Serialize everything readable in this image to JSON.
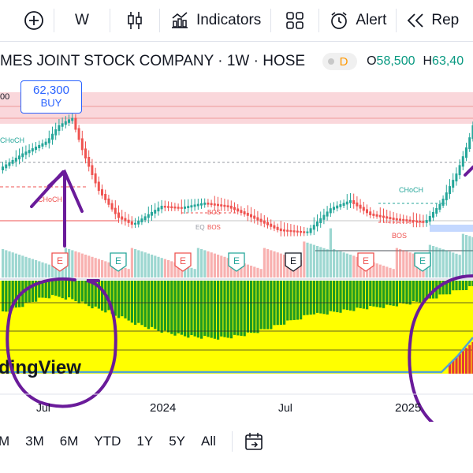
{
  "toolbar": {
    "interval": "W",
    "indicators_label": "Indicators",
    "alert_label": "Alert",
    "replay_label": "Rep"
  },
  "symbol": {
    "title": "MES JOINT STOCK COMPANY · 1W · HOSE",
    "d_badge": "D",
    "open_label": "O",
    "open_value": "58,500",
    "high_label": "H",
    "high_value": "63,40"
  },
  "order": {
    "price": "62,300",
    "action": "BUY",
    "left_price_fragment": "00"
  },
  "chart_labels": {
    "choch_1": "CHoCH",
    "choch_2": "CHoCH",
    "choch_3": "CHoCH",
    "eq": "EQ",
    "bos_1": "BOS",
    "bos_2": "BOS",
    "bos_3": "BOS",
    "earnings_marker": "E",
    "watermark": "dingView"
  },
  "time_axis": [
    "Jul",
    "2024",
    "Jul",
    "2025"
  ],
  "ranges": [
    "M",
    "3M",
    "6M",
    "YTD",
    "1Y",
    "5Y",
    "All"
  ],
  "colors": {
    "up": "#26a69a",
    "down": "#ef5350",
    "supply_zone": "#f8c9cf",
    "demand_zone": "#c4d8ff",
    "osc_yellow": "#ffff00",
    "osc_green": "#1e9b22",
    "annotation": "#6a1b9a"
  }
}
